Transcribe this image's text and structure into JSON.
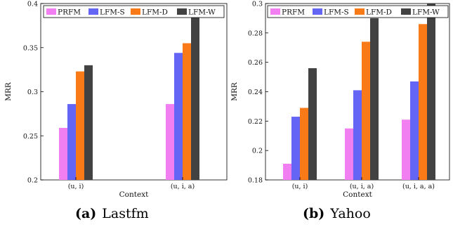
{
  "chart_data": [
    {
      "type": "bar",
      "caption_letter": "(a)",
      "caption_name": "Lastfm",
      "xlabel": "Context",
      "ylabel": "MRR",
      "ylim": [
        0.2,
        0.4
      ],
      "yticks": [
        0.2,
        0.25,
        0.3,
        0.35,
        0.4
      ],
      "ytick_labels": [
        "0.2",
        "0.25",
        "0.3",
        "0.35",
        "0.4"
      ],
      "categories": [
        "(u, i)",
        "(u, i, a)"
      ],
      "series": [
        {
          "name": "PRFM",
          "color": "#f27ff2",
          "values": [
            0.259,
            0.286
          ]
        },
        {
          "name": "LFM-S",
          "color": "#6464f5",
          "values": [
            0.286,
            0.344
          ]
        },
        {
          "name": "LFM-D",
          "color": "#fb7a18",
          "values": [
            0.323,
            0.355
          ]
        },
        {
          "name": "LFM-W",
          "color": "#424242",
          "values": [
            0.33,
            0.392
          ]
        }
      ],
      "legend": "top"
    },
    {
      "type": "bar",
      "caption_letter": "(b)",
      "caption_name": "Yahoo",
      "xlabel": "Context",
      "ylabel": "MRR",
      "ylim": [
        0.18,
        0.3
      ],
      "yticks": [
        0.18,
        0.2,
        0.22,
        0.24,
        0.26,
        0.28,
        0.3
      ],
      "ytick_labels": [
        "0.18",
        "0.2",
        "0.22",
        "0.24",
        "0.26",
        "0.28",
        "0.3"
      ],
      "categories": [
        "(u, i)",
        "(u, i, a)",
        "(u, i, a, a)"
      ],
      "series": [
        {
          "name": "PRFM",
          "color": "#f27ff2",
          "values": [
            0.191,
            0.215,
            0.221
          ]
        },
        {
          "name": "LFM-S",
          "color": "#6464f5",
          "values": [
            0.223,
            0.241,
            0.247
          ]
        },
        {
          "name": "LFM-D",
          "color": "#fb7a18",
          "values": [
            0.229,
            0.274,
            0.286
          ]
        },
        {
          "name": "LFM-W",
          "color": "#424242",
          "values": [
            0.256,
            0.29,
            0.3
          ]
        }
      ],
      "legend": "top"
    }
  ]
}
